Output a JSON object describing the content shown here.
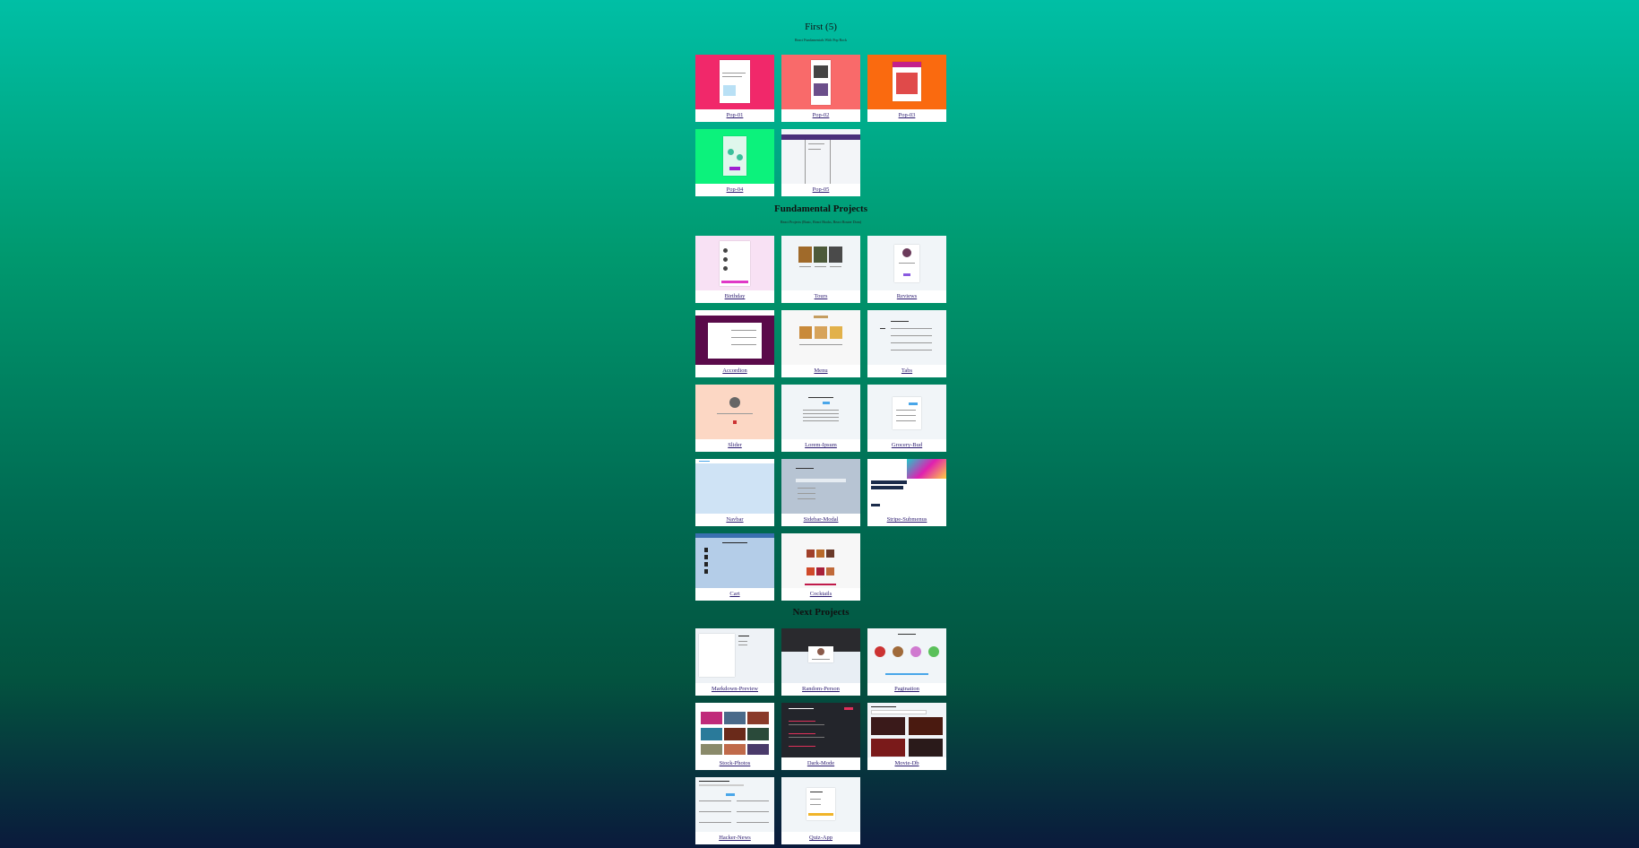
{
  "sections": [
    {
      "title": "First (5)",
      "subtitle": "React Fundamentals With Pop Rock",
      "items": [
        {
          "label": "Pop-01",
          "bg": "#f1286a"
        },
        {
          "label": "Pop-02",
          "bg": "#f96a6a"
        },
        {
          "label": "Pop-03",
          "bg": "#fa6a0f"
        },
        {
          "label": "Pop-04",
          "bg": "#0cf27c"
        },
        {
          "label": "Pop-05",
          "bg": "#f3f5f8"
        }
      ]
    },
    {
      "title": "Fundamental Projects",
      "subtitle": "React Projects (Basic, React Hooks, React Router Dom)",
      "items": [
        {
          "label": "Birthday",
          "bg": "#f8e1f4"
        },
        {
          "label": "Tours",
          "bg": "#f1f5f8"
        },
        {
          "label": "Reviews",
          "bg": "#f1f5f8"
        },
        {
          "label": "Accordion",
          "bg": "#5a0a4a"
        },
        {
          "label": "Menu",
          "bg": "#f7f7f7"
        },
        {
          "label": "Tabs",
          "bg": "#f1f5f8"
        },
        {
          "label": "Slider",
          "bg": "#fcd7c4"
        },
        {
          "label": "Lorem-Ipsum",
          "bg": "#f1f5f8"
        },
        {
          "label": "Grocery-Bud",
          "bg": "#f1f5f8"
        },
        {
          "label": "Navbar",
          "bg": "#cfe3f5"
        },
        {
          "label": "Sidebar-Modal",
          "bg": "#b7c4d3"
        },
        {
          "label": "Stripe-Submenus",
          "bg": "#ffffff"
        },
        {
          "label": "Cart",
          "bg": "#b4cde8"
        },
        {
          "label": "Cocktails",
          "bg": "#f7f7f7"
        }
      ]
    },
    {
      "title": "Next Projects",
      "subtitle": "",
      "items": [
        {
          "label": "Markdown-Preview",
          "bg": "#eef2f6"
        },
        {
          "label": "Random-Person",
          "bg": "#e8eef4"
        },
        {
          "label": "Pagination",
          "bg": "#f1f5f8"
        },
        {
          "label": "Stock-Photos",
          "bg": "#ffffff"
        },
        {
          "label": "Dark-Mode",
          "bg": "#23252b"
        },
        {
          "label": "Movie-Db",
          "bg": "#f1f5f8"
        },
        {
          "label": "Hacker-News",
          "bg": "#f1f5f8"
        },
        {
          "label": "Quiz-App",
          "bg": "#f1f5f8"
        }
      ]
    }
  ]
}
